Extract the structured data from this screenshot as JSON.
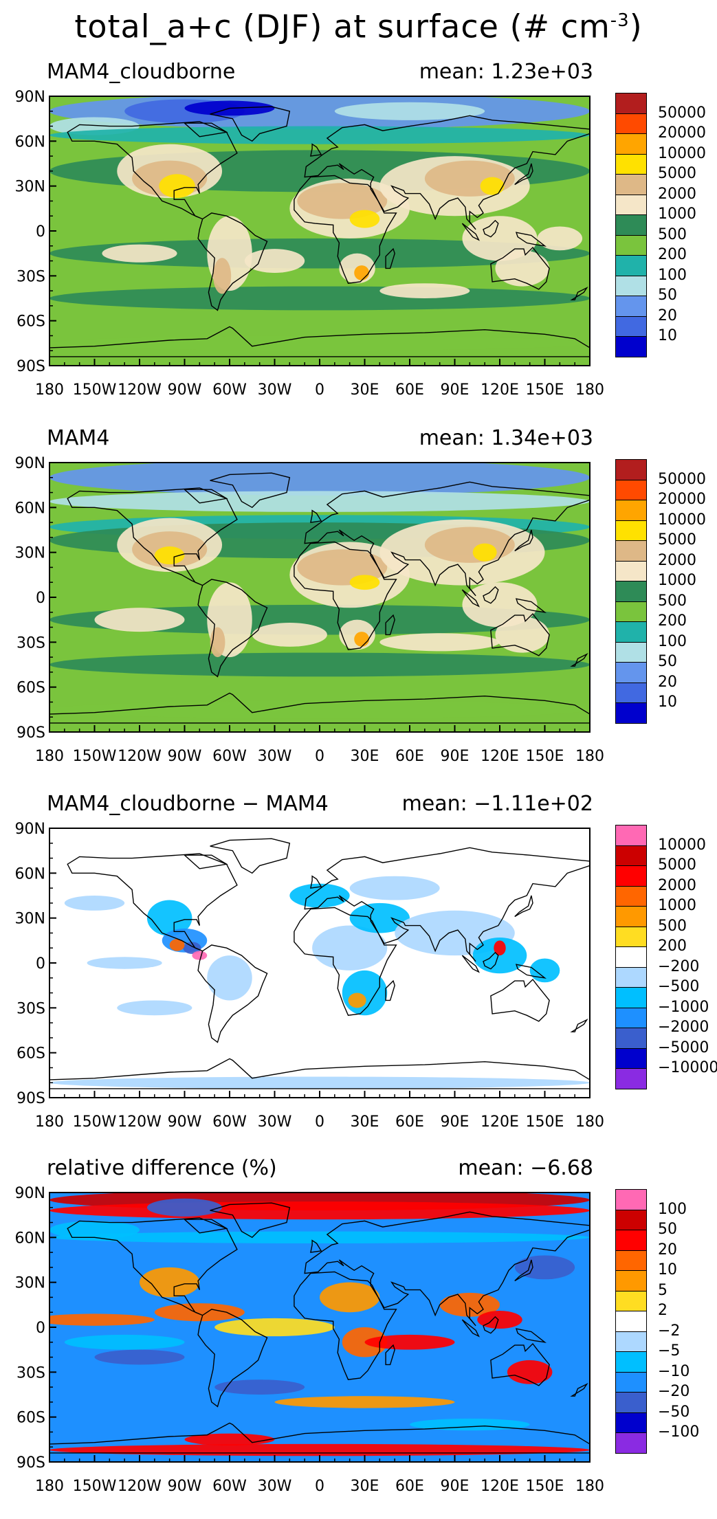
{
  "title": {
    "text": "total_a+c (DJF) at surface (# cm",
    "exp": "-3",
    "close": ")"
  },
  "axis": {
    "lat_labels": [
      "90N",
      "60N",
      "30N",
      "0",
      "30S",
      "60S",
      "90S"
    ],
    "lon_labels": [
      "180",
      "150W",
      "120W",
      "90W",
      "60W",
      "30W",
      "0",
      "30E",
      "60E",
      "90E",
      "120E",
      "150E",
      "180"
    ]
  },
  "panels": [
    {
      "id": "cloudborne",
      "left_label": "MAM4_cloudborne",
      "right_label": "mean: 1.23e+03",
      "levels": [
        "50000",
        "20000",
        "10000",
        "5000",
        "2000",
        "1000",
        "500",
        "200",
        "100",
        "50",
        "20",
        "10"
      ],
      "colors": [
        "#b21e1e",
        "#ff4a00",
        "#ffa500",
        "#ffe100",
        "#deb887",
        "#f5e6c8",
        "#2e8b57",
        "#7ac43d",
        "#20b2aa",
        "#b0e0e6",
        "#6495ed",
        "#4169e1",
        "#0000cd"
      ]
    },
    {
      "id": "mam4",
      "left_label": "MAM4",
      "right_label": "mean: 1.34e+03",
      "levels": [
        "50000",
        "20000",
        "10000",
        "5000",
        "2000",
        "1000",
        "500",
        "200",
        "100",
        "50",
        "20",
        "10"
      ],
      "colors": [
        "#b21e1e",
        "#ff4a00",
        "#ffa500",
        "#ffe100",
        "#deb887",
        "#f5e6c8",
        "#2e8b57",
        "#7ac43d",
        "#20b2aa",
        "#b0e0e6",
        "#6495ed",
        "#4169e1",
        "#0000cd"
      ]
    },
    {
      "id": "difference",
      "left_label": "MAM4_cloudborne − MAM4",
      "right_label": "mean: −1.11e+02",
      "levels": [
        "10000",
        "5000",
        "2000",
        "1000",
        "500",
        "200",
        "−200",
        "−500",
        "−1000",
        "−2000",
        "−5000",
        "−10000"
      ],
      "colors": [
        "#ff69b4",
        "#cc0000",
        "#ff0000",
        "#ff6600",
        "#ff9900",
        "#ffdd22",
        "#ffffff",
        "#add8ff",
        "#00bfff",
        "#1e90ff",
        "#3a5fcd",
        "#0000cd",
        "#8a2be2"
      ]
    },
    {
      "id": "relative",
      "left_label": "relative difference (%)",
      "right_label": "mean: −6.68",
      "levels": [
        "100",
        "50",
        "20",
        "10",
        "5",
        "2",
        "−2",
        "−5",
        "−10",
        "−20",
        "−50",
        "−100"
      ],
      "colors": [
        "#ff69b4",
        "#cc0000",
        "#ff0000",
        "#ff6600",
        "#ff9900",
        "#ffdd22",
        "#ffffff",
        "#add8ff",
        "#00bfff",
        "#1e90ff",
        "#3a5fcd",
        "#0000cd",
        "#8a2be2"
      ]
    }
  ]
}
